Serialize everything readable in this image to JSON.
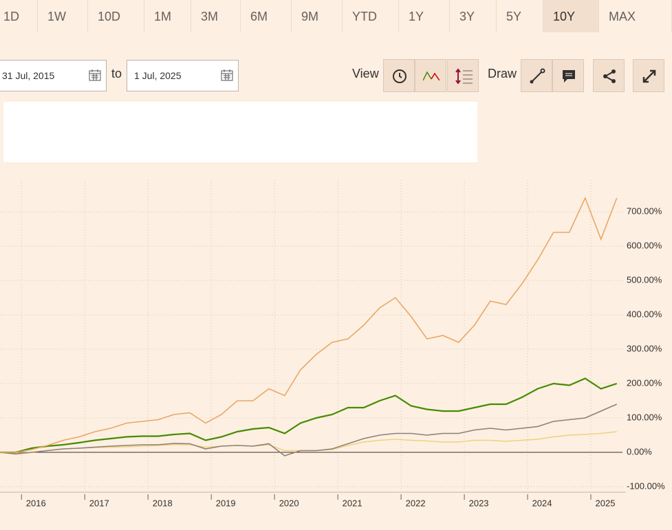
{
  "ranges": [
    {
      "label": "1D"
    },
    {
      "label": "1W"
    },
    {
      "label": "10D"
    },
    {
      "label": "1M"
    },
    {
      "label": "3M"
    },
    {
      "label": "6M"
    },
    {
      "label": "9M"
    },
    {
      "label": "YTD"
    },
    {
      "label": "1Y"
    },
    {
      "label": "3Y"
    },
    {
      "label": "5Y"
    },
    {
      "label": "10Y",
      "selected": true
    },
    {
      "label": "MAX"
    }
  ],
  "date_from": "31 Jul, 2015",
  "to_label": "to",
  "date_to": "1 Jul, 2025",
  "view_label": "View",
  "draw_label": "Draw",
  "chart_data": {
    "type": "line",
    "x": [
      2015.66,
      2015.91,
      2016.16,
      2016.41,
      2016.66,
      2016.91,
      2017.16,
      2017.41,
      2017.66,
      2017.91,
      2018.16,
      2018.41,
      2018.66,
      2018.91,
      2019.16,
      2019.41,
      2019.66,
      2019.91,
      2020.16,
      2020.41,
      2020.66,
      2020.91,
      2021.16,
      2021.41,
      2021.66,
      2021.91,
      2022.16,
      2022.41,
      2022.66,
      2022.91,
      2023.16,
      2023.41,
      2023.66,
      2023.91,
      2024.16,
      2024.41,
      2024.66,
      2024.91,
      2025.16,
      2025.41
    ],
    "xlim": [
      2015.66,
      2025.5
    ],
    "xticks": [
      2016,
      2017,
      2018,
      2019,
      2020,
      2021,
      2022,
      2023,
      2024,
      2025
    ],
    "ylim": [
      -110,
      792
    ],
    "yticks": [
      {
        "value": -100,
        "label": "-100.00%"
      },
      {
        "value": 0,
        "label": "0.00%"
      },
      {
        "value": 100,
        "label": "100.00%"
      },
      {
        "value": 200,
        "label": "200.00%"
      },
      {
        "value": 300,
        "label": "300.00%"
      },
      {
        "value": 400,
        "label": "400.00%"
      },
      {
        "value": 500,
        "label": "500.00%"
      },
      {
        "value": 600,
        "label": "600.00%"
      },
      {
        "value": 700,
        "label": "700.00%"
      }
    ],
    "grid": true,
    "series": [
      {
        "color": "#f0d27e",
        "values": [
          0,
          -3,
          0,
          5,
          10,
          12,
          14,
          15,
          16,
          18,
          20,
          22,
          22,
          15,
          18,
          20,
          18,
          22,
          5,
          5,
          5,
          8,
          20,
          30,
          35,
          38,
          35,
          33,
          30,
          30,
          35,
          35,
          32,
          35,
          38,
          45,
          50,
          52,
          55,
          60
        ]
      },
      {
        "color": "#8c8075",
        "values": [
          0,
          -5,
          0,
          5,
          10,
          12,
          15,
          18,
          20,
          22,
          22,
          26,
          25,
          10,
          18,
          20,
          18,
          25,
          -10,
          5,
          5,
          10,
          25,
          40,
          50,
          55,
          55,
          50,
          55,
          55,
          65,
          70,
          65,
          70,
          75,
          90,
          95,
          100,
          120,
          140
        ]
      },
      {
        "color": "#458b00",
        "values": [
          0,
          0,
          12,
          18,
          22,
          28,
          35,
          40,
          45,
          47,
          47,
          52,
          55,
          35,
          45,
          60,
          68,
          72,
          55,
          85,
          100,
          110,
          130,
          130,
          150,
          165,
          135,
          125,
          120,
          120,
          130,
          140,
          140,
          160,
          185,
          200,
          195,
          215,
          185,
          200
        ]
      },
      {
        "color": "#e8a766",
        "values": [
          0,
          0,
          8,
          20,
          35,
          45,
          60,
          70,
          85,
          90,
          95,
          110,
          115,
          85,
          110,
          150,
          150,
          185,
          165,
          240,
          285,
          320,
          330,
          370,
          420,
          450,
          395,
          330,
          340,
          320,
          370,
          440,
          430,
          490,
          560,
          640,
          640,
          740,
          620,
          740
        ]
      }
    ]
  }
}
